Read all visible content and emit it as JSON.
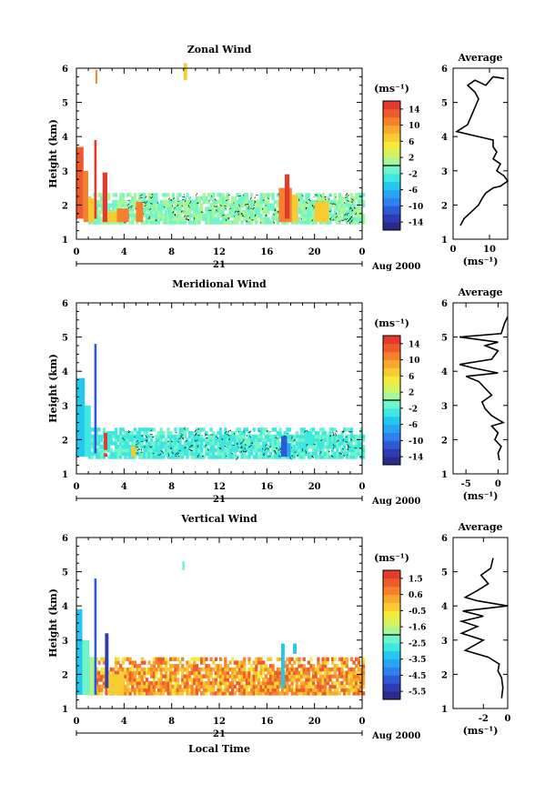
{
  "chart_data": [
    {
      "type": "heatmap",
      "title": "Zonal Wind",
      "ylabel": "Height (km)",
      "ylim": [
        1,
        6
      ],
      "yticks": [
        "1",
        "2",
        "3",
        "4",
        "5",
        "6"
      ],
      "xlim": [
        0,
        24
      ],
      "xticks": [
        "0",
        "4",
        "8",
        "12",
        "16",
        "20",
        "0"
      ],
      "day_label": "21",
      "date_label": "Aug 2000",
      "colorbar": {
        "unit": "(ms⁻¹)",
        "ticks": [
          "14",
          "10",
          "6",
          "2",
          "-2",
          "-6",
          "-10",
          "-14"
        ],
        "min": -14,
        "max": 14
      },
      "data_coverage": {
        "height_min": 1.45,
        "height_max": 2.35
      },
      "segments": [
        {
          "t0": 0.0,
          "t1": 0.6,
          "h0": 1.6,
          "h1": 3.7,
          "value": 12
        },
        {
          "t0": 0.6,
          "t1": 1.0,
          "h0": 1.5,
          "h1": 3.0,
          "value": 10
        },
        {
          "t0": 1.0,
          "t1": 1.5,
          "h0": 1.5,
          "h1": 2.2,
          "value": 6
        },
        {
          "t0": 1.5,
          "t1": 1.7,
          "h0": 1.6,
          "h1": 3.9,
          "value": 14
        },
        {
          "t0": 1.6,
          "t1": 1.75,
          "h0": 5.55,
          "h1": 5.95,
          "value": 10
        },
        {
          "t0": 2.2,
          "t1": 2.6,
          "h0": 1.5,
          "h1": 2.95,
          "value": 14
        },
        {
          "t0": 2.6,
          "t1": 3.4,
          "h0": 1.5,
          "h1": 1.8,
          "value": 6
        },
        {
          "t0": 3.4,
          "t1": 4.4,
          "h0": 1.5,
          "h1": 1.9,
          "value": 10
        },
        {
          "t0": 5.0,
          "t1": 5.6,
          "h0": 1.5,
          "h1": 2.1,
          "value": 10
        },
        {
          "t0": 9.0,
          "t1": 9.3,
          "h0": 5.65,
          "h1": 6.15,
          "value": 6
        },
        {
          "t0": 17.0,
          "t1": 18.1,
          "h0": 1.5,
          "h1": 2.5,
          "value": 10
        },
        {
          "t0": 17.5,
          "t1": 17.9,
          "h0": 1.6,
          "h1": 2.9,
          "value": 14
        },
        {
          "t0": 18.1,
          "t1": 18.6,
          "h0": 1.5,
          "h1": 2.3,
          "value": 6
        },
        {
          "t0": 20.0,
          "t1": 21.2,
          "h0": 1.5,
          "h1": 2.1,
          "value": 6
        }
      ],
      "background_value": 0,
      "profile": {
        "title": "Average",
        "xlabel": "(ms⁻¹)",
        "xticks": [
          0,
          10
        ],
        "xlim": [
          0,
          15
        ],
        "ylim": [
          1,
          6
        ],
        "points": [
          [
            2,
            1.4
          ],
          [
            3,
            1.6
          ],
          [
            5,
            1.8
          ],
          [
            7,
            2.0
          ],
          [
            8,
            2.2
          ],
          [
            9,
            2.35
          ],
          [
            11,
            2.5
          ],
          [
            13,
            2.55
          ],
          [
            15,
            2.7
          ],
          [
            14,
            2.85
          ],
          [
            12,
            3.0
          ],
          [
            13,
            3.2
          ],
          [
            11,
            3.35
          ],
          [
            12,
            3.55
          ],
          [
            11,
            3.7
          ],
          [
            11,
            3.9
          ],
          [
            1,
            4.15
          ],
          [
            4,
            4.35
          ],
          [
            5,
            4.6
          ],
          [
            6,
            4.85
          ],
          [
            7,
            5.1
          ],
          [
            6,
            5.3
          ],
          [
            4,
            5.5
          ],
          [
            6,
            5.65
          ],
          [
            9,
            5.5
          ],
          [
            11,
            5.75
          ],
          [
            14,
            5.7
          ]
        ]
      }
    },
    {
      "type": "heatmap",
      "title": "Meridional Wind",
      "ylabel": "Height (km)",
      "ylim": [
        1,
        6
      ],
      "yticks": [
        "1",
        "2",
        "3",
        "4",
        "5",
        "6"
      ],
      "xlim": [
        0,
        24
      ],
      "xticks": [
        "0",
        "4",
        "8",
        "12",
        "16",
        "20",
        "0"
      ],
      "day_label": "21",
      "date_label": "Aug 2000",
      "colorbar": {
        "unit": "(ms⁻¹)",
        "ticks": [
          "14",
          "10",
          "6",
          "2",
          "-2",
          "-6",
          "-10",
          "-14"
        ],
        "min": -14,
        "max": 14
      },
      "data_coverage": {
        "height_min": 1.45,
        "height_max": 2.35
      },
      "segments": [
        {
          "t0": 0.0,
          "t1": 0.7,
          "h0": 1.5,
          "h1": 3.8,
          "value": -4
        },
        {
          "t0": 0.7,
          "t1": 1.2,
          "h0": 1.5,
          "h1": 3.0,
          "value": -2
        },
        {
          "t0": 1.5,
          "t1": 1.7,
          "h0": 1.6,
          "h1": 4.8,
          "value": -10
        },
        {
          "t0": 2.3,
          "t1": 2.6,
          "h0": 1.7,
          "h1": 2.2,
          "value": 14
        },
        {
          "t0": 2.3,
          "t1": 2.6,
          "h0": 1.5,
          "h1": 1.6,
          "value": 14
        },
        {
          "t0": 4.6,
          "t1": 5.0,
          "h0": 1.5,
          "h1": 1.8,
          "value": 6
        },
        {
          "t0": 17.2,
          "t1": 17.7,
          "h0": 1.5,
          "h1": 2.1,
          "value": -10
        },
        {
          "t0": 17.7,
          "t1": 18.0,
          "h0": 1.5,
          "h1": 1.9,
          "value": -6
        }
      ],
      "background_value": -2,
      "profile": {
        "title": "Average",
        "xlabel": "(ms⁻¹)",
        "xticks": [
          -5,
          0
        ],
        "xlim": [
          -7,
          1.5
        ],
        "ylim": [
          1,
          6
        ],
        "points": [
          [
            0.2,
            1.4
          ],
          [
            0,
            1.6
          ],
          [
            0.5,
            1.8
          ],
          [
            -0.5,
            2.0
          ],
          [
            0,
            2.2
          ],
          [
            -1,
            2.4
          ],
          [
            0.8,
            2.5
          ],
          [
            -1,
            2.7
          ],
          [
            -2,
            2.9
          ],
          [
            -2.5,
            3.1
          ],
          [
            -1,
            3.3
          ],
          [
            -2,
            3.5
          ],
          [
            -3,
            3.7
          ],
          [
            -5,
            3.85
          ],
          [
            0,
            3.95
          ],
          [
            -4,
            4.1
          ],
          [
            -6,
            4.2
          ],
          [
            -1,
            4.35
          ],
          [
            0,
            4.6
          ],
          [
            -2,
            4.75
          ],
          [
            0,
            4.85
          ],
          [
            -6,
            5.0
          ],
          [
            0.5,
            5.1
          ],
          [
            1,
            5.4
          ],
          [
            1.5,
            5.6
          ]
        ]
      }
    },
    {
      "type": "heatmap",
      "title": "Vertical Wind",
      "ylabel": "Height (km)",
      "ylim": [
        1,
        6
      ],
      "yticks": [
        "1",
        "2",
        "3",
        "4",
        "5",
        "6"
      ],
      "xlim": [
        0,
        24
      ],
      "xticks": [
        "0",
        "4",
        "8",
        "12",
        "16",
        "20",
        "0"
      ],
      "day_label": "21",
      "date_label": "Aug 2000",
      "xlabel": "Local Time",
      "colorbar": {
        "unit": "(ms⁻¹)",
        "ticks": [
          "1.5",
          "0.6",
          "-0.5",
          "-1.6",
          "-2.5",
          "-3.5",
          "-4.5",
          "-5.5"
        ],
        "min": -6,
        "max": 2
      },
      "data_coverage": {
        "height_min": 1.4,
        "height_max": 2.5
      },
      "segments": [
        {
          "t0": 0.0,
          "t1": 0.5,
          "h0": 1.4,
          "h1": 3.9,
          "value": -3.5
        },
        {
          "t0": 0.5,
          "t1": 1.1,
          "h0": 1.4,
          "h1": 3.0,
          "value": -2.5
        },
        {
          "t0": 1.1,
          "t1": 1.6,
          "h0": 1.4,
          "h1": 2.5,
          "value": -1.6
        },
        {
          "t0": 1.5,
          "t1": 1.7,
          "h0": 1.4,
          "h1": 4.8,
          "value": -5.0
        },
        {
          "t0": 2.4,
          "t1": 2.7,
          "h0": 1.6,
          "h1": 3.2,
          "value": -5.5
        },
        {
          "t0": 2.7,
          "t1": 4.0,
          "h0": 1.4,
          "h1": 2.0,
          "value": -0.5
        },
        {
          "t0": 8.9,
          "t1": 9.1,
          "h0": 5.05,
          "h1": 5.3,
          "value": -2.5
        },
        {
          "t0": 17.2,
          "t1": 17.5,
          "h0": 1.6,
          "h1": 2.9,
          "value": -3.5
        },
        {
          "t0": 18.2,
          "t1": 18.5,
          "h0": 2.6,
          "h1": 2.9,
          "value": -3.5
        }
      ],
      "background_value": 0.4,
      "profile": {
        "title": "Average",
        "xlabel": "(ms⁻¹)",
        "xticks": [
          -2,
          0
        ],
        "xlim": [
          -4.5,
          0
        ],
        "ylim": [
          1,
          6
        ],
        "points": [
          [
            -0.5,
            1.3
          ],
          [
            -0.4,
            1.6
          ],
          [
            -0.5,
            1.9
          ],
          [
            -0.8,
            2.1
          ],
          [
            -0.7,
            2.3
          ],
          [
            -1.6,
            2.5
          ],
          [
            -3.5,
            2.7
          ],
          [
            -2,
            3.0
          ],
          [
            -3.8,
            3.2
          ],
          [
            -2.5,
            3.4
          ],
          [
            -3.8,
            3.55
          ],
          [
            -2,
            3.7
          ],
          [
            -3.7,
            3.85
          ],
          [
            0,
            4.0
          ],
          [
            -2.5,
            4.15
          ],
          [
            -3.5,
            4.25
          ],
          [
            -2.5,
            4.45
          ],
          [
            -1.6,
            4.65
          ],
          [
            -2.2,
            4.9
          ],
          [
            -1.4,
            5.1
          ],
          [
            -1.2,
            5.4
          ]
        ]
      }
    }
  ]
}
